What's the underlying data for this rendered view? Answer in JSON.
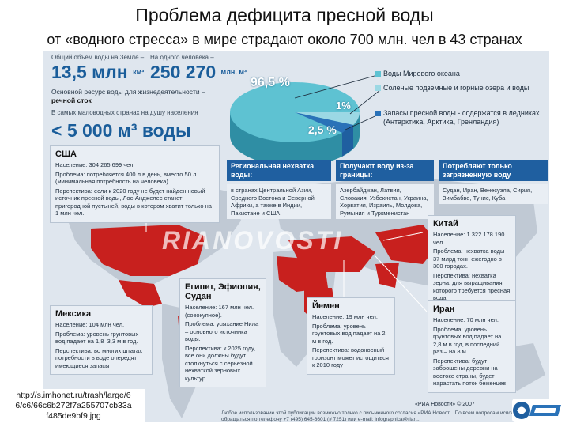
{
  "slide": {
    "title": "Проблема дефицита пресной воды",
    "subtitle": "от «водного стресса» в мире страдают около 700 млн. чел в 43 странах"
  },
  "stats": {
    "total_label": "Общий объем воды на Земле –",
    "total_value": "13,5 млн",
    "total_unit": "км³",
    "per_person_label": "На одного человека –",
    "per_person_value": "250 270",
    "per_person_unit": "млн. м³",
    "resource_label": "Основной ресурс воды для жизнедеятельности –",
    "resource_value": "речной сток",
    "driest_label": "В самых маловодных странах на душу населения",
    "driest_value": "< 5 000 м³ воды"
  },
  "pie": {
    "ocean_pct": "96,5 %",
    "groundwater_pct": "1%",
    "fresh_pct": "2,5 %"
  },
  "legend": {
    "ocean": "Воды Мирового океана",
    "groundwater": "Соленые подземные и горные озера и воды",
    "fresh": "Запасы пресной воды - содержатся в ледниках (Антарктика, Арктика, Гренландия)"
  },
  "categories": {
    "regional_title": "Региональная нехватка воды:",
    "regional_text": "в странах Центральной Азии, Среднего Востока и Северной Африки, а также в Индии, Пакистане и США",
    "borders_title": "Получают воду из-за границы:",
    "borders_text": "Азербайджан, Латвия, Словакия, Узбекистан, Украина, Хорватия, Израиль, Молдова, Румыния и Туркменистан",
    "polluted_title": "Потребляют только загрязненную воду",
    "polluted_text": "Судан, Иран, Венесуэла, Сирия, Зимбабве, Тунис, Куба"
  },
  "usa": {
    "title": "США",
    "population": "Население: 304 265 699 чел.",
    "problem": "Проблема: потребляется 400 л в день, вместо 50 л (минимальная потребность на человека)..",
    "outlook": "Перспектива: если к 2020 году не будет найден новый источник пресной воды, Лос-Анджелес станет пригородной пустыней, воды в котором хватит только на 1 млн чел."
  },
  "mexico": {
    "title": "Мексика",
    "population": "Население: 104 млн чел.",
    "problem": "Проблема: уровень грунтовых вод падает на 1,8–3,3 м в год.",
    "outlook": "Перспектива: во многих штатах потребности в воде опередят имеющиеся запасы"
  },
  "egypt": {
    "title": "Египет, Эфиопия, Судан",
    "population": "Население: 167 млн чел. (совокупное).",
    "problem": "Проблема: усыхание Нила – основного источника воды.",
    "outlook": "Перспектива: к 2025 году, все они должны будут столкнуться с серьезной нехваткой зерновых культур"
  },
  "yemen": {
    "title": "Йемен",
    "population": "Население: 19 млн чел.",
    "problem": "Проблема: уровень грунтовых вод падает на 2 м в год.",
    "outlook": "Перспектива: водоносный горизонт может истощиться к 2010 году"
  },
  "china": {
    "title": "Китай",
    "population": "Население: 1 322 178 190 чел.",
    "problem": "Проблема: нехватка воды 37 млрд тонн ежегодно в 300 городах.",
    "outlook": "Перспектива: нехватка зерна, для выращивания которого требуется пресная вода"
  },
  "iran": {
    "title": "Иран",
    "population": "Население: 70 млн чел.",
    "problem": "Проблема: уровень грунтовых вод падает на 2,8 м в год, в последний раз – на 8 м.",
    "outlook": "Перспектива: будут заброшены деревни на востоке страны, будет нарастать поток беженцев"
  },
  "footer": {
    "credit": "«РИА Новости» © 2007",
    "note": "Любое использование этой публикации возможно только с письменного согласия «РИА Новост... По всем вопросам использования обращаться по телефону +7 (495) 645-6601 (# 7251) или e-mail: infographica@rian..."
  },
  "watermark": "RIANOVOSTI",
  "source_url": "http://s.imhonet.ru/trash/large/6 6/c6/66c6b272f7a255707cb33a f485de9bf9.jpg",
  "colors": {
    "deficit_red": "#c8201e",
    "accent_blue": "#1f5fa0",
    "water_teal": "#4fb5c8"
  }
}
